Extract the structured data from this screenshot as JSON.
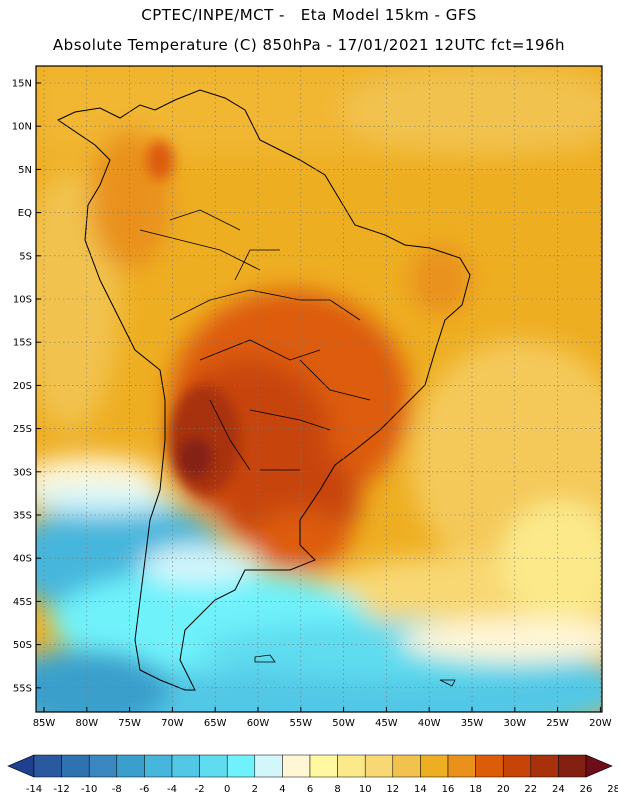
{
  "header": {
    "line1": "CPTEC/INPE/MCT -   Eta Model 15km - GFS",
    "line2": "Absolute Temperature (C) 850hPa - 17/01/2021 12UTC fct=196h"
  },
  "map": {
    "lat_labels": [
      "15N",
      "10N",
      "5N",
      "EQ",
      "5S",
      "10S",
      "15S",
      "20S",
      "25S",
      "30S",
      "35S",
      "40S",
      "45S",
      "50S",
      "55S"
    ],
    "lon_labels": [
      "85W",
      "80W",
      "75W",
      "70W",
      "65W",
      "60W",
      "55W",
      "50W",
      "45W",
      "40W",
      "35W",
      "30W",
      "25W",
      "20W"
    ]
  },
  "colorbar": {
    "labels": [
      "-14",
      "-12",
      "-10",
      "-8",
      "-6",
      "-4",
      "-2",
      "0",
      "2",
      "4",
      "6",
      "8",
      "10",
      "12",
      "14",
      "16",
      "18",
      "20",
      "22",
      "24",
      "26",
      "28"
    ],
    "colors": [
      "#1f3f8f",
      "#2a59a0",
      "#2f72b0",
      "#3a88bf",
      "#3a9fcc",
      "#46b6dc",
      "#52c8e6",
      "#5fdcef",
      "#6ff2fb",
      "#d3f6fb",
      "#fff6d6",
      "#fff8a0",
      "#fbe98a",
      "#f8d873",
      "#f1c24e",
      "#eeae22",
      "#e9911b",
      "#dd5c09",
      "#c74409",
      "#a8300a",
      "#842012",
      "#6e0e1a"
    ]
  }
}
